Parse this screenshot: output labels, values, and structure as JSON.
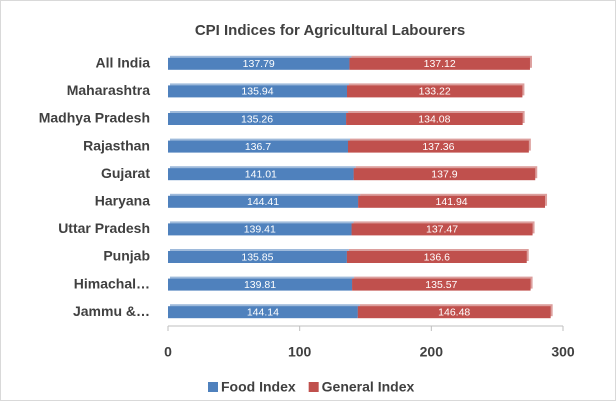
{
  "chart_data": {
    "type": "stacked-bar-horizontal",
    "title": "CPI Indices for Agricultural Labourers",
    "categories": [
      "All India",
      "Maharashtra",
      "Madhya Pradesh",
      "Rajasthan",
      "Gujarat",
      "Haryana",
      "Uttar Pradesh",
      "Punjab",
      "Himachal…",
      "Jammu &…"
    ],
    "series": [
      {
        "name": "Food Index",
        "color": "#4f81bd",
        "values": [
          137.79,
          135.94,
          135.26,
          136.7,
          141.01,
          144.41,
          139.41,
          135.85,
          139.81,
          144.14
        ]
      },
      {
        "name": "General Index",
        "color": "#c0504d",
        "values": [
          137.12,
          133.22,
          134.08,
          137.36,
          137.9,
          141.94,
          137.47,
          136.6,
          135.57,
          146.48
        ]
      }
    ],
    "xlim": [
      0,
      300
    ],
    "xticks": [
      0,
      100,
      200,
      300
    ],
    "grid": false,
    "legend": "bottom"
  }
}
